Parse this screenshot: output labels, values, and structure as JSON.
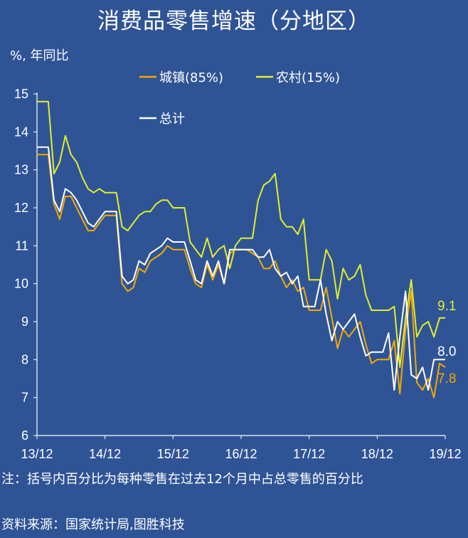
{
  "chart_data": {
    "type": "line",
    "title": "消费品零售增速（分地区）",
    "ylabel": "%,   年同比",
    "xlabel": "",
    "ylim": [
      6,
      15
    ],
    "yticks": [
      6,
      7,
      8,
      9,
      10,
      11,
      12,
      13,
      14,
      15
    ],
    "xtick_labels": [
      "13/12",
      "14/12",
      "15/12",
      "16/12",
      "17/12",
      "18/12",
      "19/12"
    ],
    "x_start": "2013-12",
    "x_end": "2019-12",
    "legend_position": "top-center",
    "grid": false,
    "series": [
      {
        "name": "城镇(85%)",
        "color": "#f2a900",
        "end_label": "7.8",
        "values": [
          13.4,
          13.4,
          13.4,
          12.1,
          11.7,
          12.3,
          12.3,
          12.0,
          11.7,
          11.4,
          11.4,
          11.6,
          11.8,
          11.8,
          11.8,
          10.0,
          9.8,
          9.9,
          10.4,
          10.3,
          10.6,
          10.7,
          10.8,
          11.0,
          10.9,
          10.9,
          10.9,
          10.4,
          10.0,
          9.9,
          10.5,
          10.1,
          10.5,
          10.0,
          10.8,
          10.9,
          10.9,
          10.9,
          10.8,
          10.7,
          10.4,
          10.4,
          10.6,
          10.2,
          9.9,
          10.1,
          9.8,
          9.9,
          9.3,
          9.3,
          9.3,
          9.9,
          9.1,
          8.3,
          8.8,
          8.6,
          8.8,
          9.0,
          8.4,
          7.9,
          8.0,
          8.0,
          8.0,
          8.5,
          7.1,
          8.8,
          9.8,
          7.4,
          7.2,
          7.5,
          7.0,
          7.9,
          7.8
        ]
      },
      {
        "name": "农村(15%)",
        "color": "#e3ee2a",
        "end_label": "9.1",
        "values": [
          14.8,
          14.8,
          14.8,
          12.9,
          13.2,
          13.9,
          13.4,
          13.2,
          12.8,
          12.5,
          12.4,
          12.5,
          12.4,
          12.4,
          12.4,
          11.5,
          11.4,
          11.6,
          11.8,
          11.9,
          11.9,
          12.1,
          12.2,
          12.2,
          12.0,
          12.0,
          12.0,
          11.1,
          10.9,
          10.7,
          11.2,
          10.7,
          10.9,
          11.0,
          10.4,
          11.0,
          11.2,
          11.2,
          11.2,
          12.2,
          12.6,
          12.7,
          12.9,
          11.7,
          11.5,
          11.5,
          11.3,
          11.7,
          10.1,
          10.1,
          10.1,
          10.9,
          10.6,
          9.6,
          10.4,
          10.1,
          10.2,
          10.5,
          9.7,
          9.3,
          9.3,
          9.3,
          9.3,
          9.4,
          7.8,
          9.1,
          10.1,
          8.6,
          8.9,
          9.0,
          8.6,
          9.1,
          9.1
        ]
      },
      {
        "name": "总计",
        "color": "#ffffff",
        "end_label": "8.0",
        "values": [
          13.6,
          13.6,
          13.6,
          12.2,
          11.9,
          12.5,
          12.4,
          12.2,
          11.9,
          11.6,
          11.5,
          11.7,
          11.9,
          11.9,
          11.9,
          10.2,
          10.0,
          10.1,
          10.6,
          10.5,
          10.8,
          10.9,
          11.0,
          11.2,
          11.1,
          11.1,
          11.1,
          10.6,
          10.1,
          10.0,
          10.6,
          10.2,
          10.6,
          10.0,
          10.9,
          10.9,
          10.9,
          10.9,
          10.9,
          10.7,
          10.7,
          10.9,
          10.4,
          10.2,
          10.3,
          10.0,
          10.2,
          9.4,
          9.4,
          9.4,
          10.1,
          9.2,
          8.5,
          9.0,
          8.8,
          9.0,
          9.2,
          8.6,
          8.1,
          8.2,
          8.2,
          8.2,
          8.7,
          7.2,
          8.6,
          9.8,
          7.6,
          7.5,
          7.8,
          7.2,
          8.0,
          8.0,
          8.0
        ]
      }
    ]
  },
  "notes": {
    "note": "注：括号内百分比为每种零售在过去12个月中占总零售的百分比",
    "source": "资料来源：国家统计局,图胜科技"
  }
}
